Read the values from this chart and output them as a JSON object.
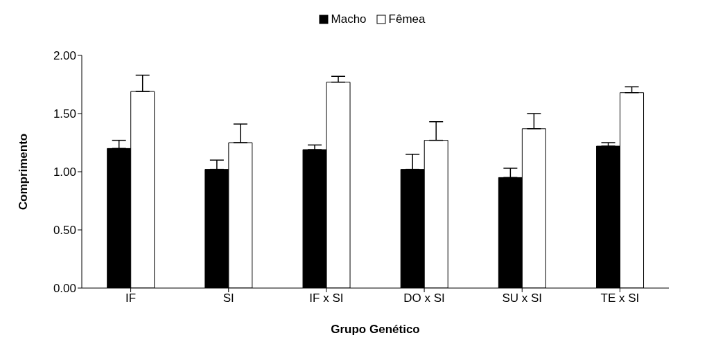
{
  "chart_data": {
    "type": "bar",
    "xlabel": "Grupo Genético",
    "ylabel": "Comprimento",
    "categories": [
      "IF",
      "SI",
      "IF x SI",
      "DO x SI",
      "SU x SI",
      "TE x SI"
    ],
    "series": [
      {
        "name": "Macho",
        "color": "#000000",
        "values": [
          1.2,
          1.02,
          1.19,
          1.02,
          0.95,
          1.22
        ],
        "errors": [
          [
            1.2,
            1.27
          ],
          [
            1.02,
            1.1
          ],
          [
            1.19,
            1.23
          ],
          [
            1.02,
            1.15
          ],
          [
            0.95,
            1.03
          ],
          [
            1.22,
            1.25
          ]
        ]
      },
      {
        "name": "Fêmea",
        "color": "#ffffff",
        "values": [
          1.69,
          1.25,
          1.77,
          1.27,
          1.37,
          1.68
        ],
        "errors": [
          [
            1.69,
            1.83
          ],
          [
            1.25,
            1.41
          ],
          [
            1.77,
            1.82
          ],
          [
            1.27,
            1.43
          ],
          [
            1.37,
            1.5
          ],
          [
            1.68,
            1.73
          ]
        ]
      }
    ],
    "ylim": [
      0,
      2
    ],
    "yticks": [
      {
        "value": 0,
        "label": "0.00"
      },
      {
        "value": 0.5,
        "label": "0.50"
      },
      {
        "value": 1,
        "label": "1.00"
      },
      {
        "value": 1.5,
        "label": "1.50"
      },
      {
        "value": 2,
        "label": "2.00"
      }
    ],
    "grid": false,
    "legend": "top"
  }
}
